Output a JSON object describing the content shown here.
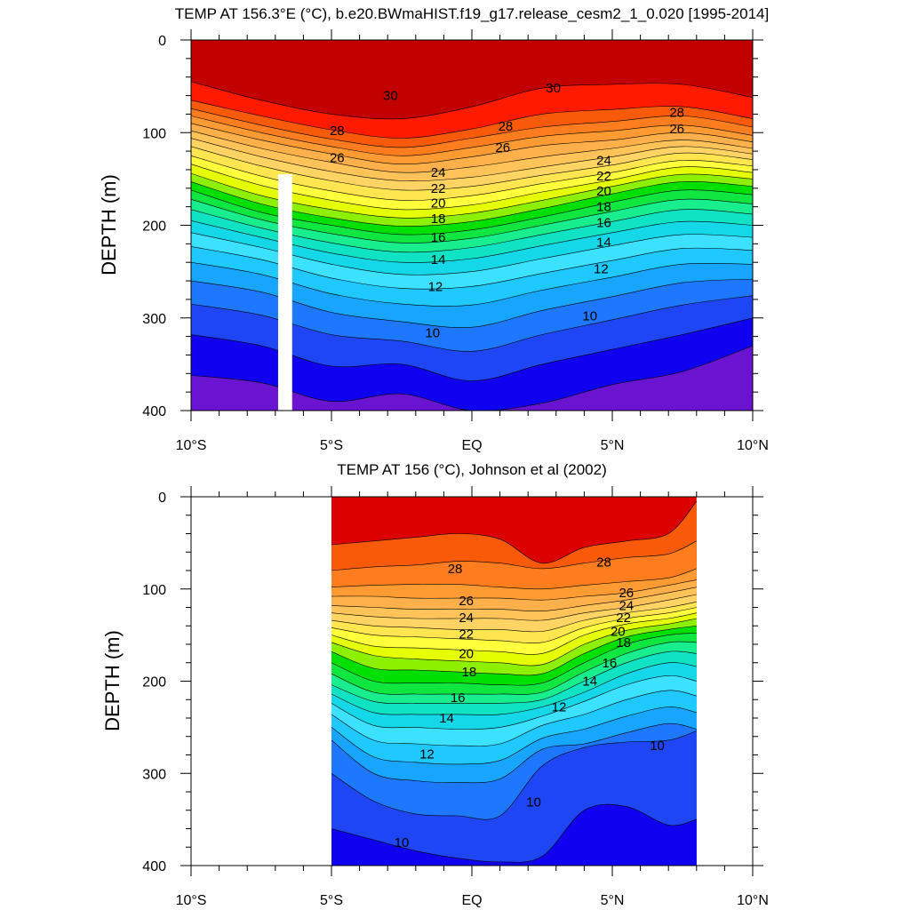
{
  "chart_data": [
    {
      "type": "contour",
      "title": "TEMP AT 156.3°E (°C), b.e20.BWmaHIST.f19_g17.release_cesm2_1_0.020 [1995-2014]",
      "xlabel": "",
      "ylabel": "DEPTH (m)",
      "xlim": [
        -10,
        10
      ],
      "ylim": [
        400,
        0
      ],
      "x_ticks": [
        -10,
        -5,
        0,
        5,
        10
      ],
      "x_tick_labels": [
        "10°S",
        "5°S",
        "EQ",
        "5°N",
        "10°N"
      ],
      "y_ticks": [
        0,
        100,
        200,
        300,
        400
      ],
      "y_tick_labels": [
        "0",
        "100",
        "200",
        "300",
        "400"
      ],
      "data_extent": [
        -10,
        10
      ],
      "missing_band": [
        -6.9,
        -6.4,
        145,
        400
      ],
      "x_nodes": [
        -10,
        -7.5,
        -5,
        -2.5,
        0,
        2.5,
        5,
        7.5,
        10
      ],
      "contours": [
        {
          "level": 30,
          "depth": [
            45,
            65,
            80,
            85,
            72,
            52,
            48,
            48,
            62
          ]
        },
        {
          "level": 29,
          "depth": [
            65,
            82,
            97,
            106,
            96,
            80,
            75,
            72,
            85
          ]
        },
        {
          "level": 28,
          "depth": [
            74,
            92,
            107,
            116,
            106,
            94,
            88,
            82,
            94
          ]
        },
        {
          "level": 27,
          "depth": [
            82,
            100,
            115,
            125,
            116,
            104,
            98,
            92,
            103
          ]
        },
        {
          "level": 26,
          "depth": [
            90,
            108,
            123,
            134,
            126,
            114,
            108,
            100,
            110
          ]
        },
        {
          "level": 25,
          "depth": [
            98,
            117,
            132,
            143,
            137,
            126,
            117,
            108,
            117
          ]
        },
        {
          "level": 24,
          "depth": [
            106,
            126,
            142,
            152,
            148,
            137,
            126,
            115,
            123
          ]
        },
        {
          "level": 23,
          "depth": [
            115,
            136,
            152,
            162,
            158,
            146,
            135,
            122,
            129
          ]
        },
        {
          "level": 22,
          "depth": [
            125,
            147,
            163,
            173,
            168,
            155,
            143,
            130,
            136
          ]
        },
        {
          "level": 21,
          "depth": [
            134,
            157,
            173,
            183,
            178,
            164,
            151,
            137,
            143
          ]
        },
        {
          "level": 20,
          "depth": [
            144,
            168,
            183,
            192,
            187,
            173,
            158,
            145,
            150
          ]
        },
        {
          "level": 19,
          "depth": [
            153,
            177,
            192,
            201,
            196,
            182,
            166,
            153,
            158
          ]
        },
        {
          "level": 18,
          "depth": [
            162,
            186,
            200,
            210,
            205,
            191,
            175,
            162,
            167
          ]
        },
        {
          "level": 17,
          "depth": [
            172,
            194,
            209,
            219,
            214,
            200,
            185,
            172,
            177
          ]
        },
        {
          "level": 16,
          "depth": [
            183,
            203,
            219,
            229,
            224,
            210,
            196,
            183,
            188
          ]
        },
        {
          "level": 15,
          "depth": [
            195,
            213,
            230,
            240,
            236,
            222,
            208,
            196,
            200
          ]
        },
        {
          "level": 14,
          "depth": [
            208,
            224,
            242,
            253,
            250,
            236,
            222,
            210,
            213
          ]
        },
        {
          "level": 13,
          "depth": [
            223,
            237,
            257,
            268,
            266,
            252,
            238,
            225,
            227
          ]
        },
        {
          "level": 12,
          "depth": [
            240,
            253,
            274,
            285,
            286,
            270,
            256,
            242,
            242
          ]
        },
        {
          "level": 11,
          "depth": [
            260,
            272,
            294,
            304,
            310,
            292,
            277,
            262,
            258
          ]
        },
        {
          "level": 10,
          "depth": [
            285,
            297,
            318,
            325,
            336,
            318,
            302,
            286,
            276
          ]
        },
        {
          "level": 9,
          "depth": [
            318,
            330,
            352,
            350,
            368,
            350,
            334,
            318,
            300
          ]
        },
        {
          "level": 8,
          "depth": [
            362,
            370,
            390,
            382,
            400,
            392,
            372,
            358,
            330
          ]
        }
      ],
      "contour_labels": [
        {
          "text": "30",
          "x": -2.9,
          "y": 60
        },
        {
          "text": "30",
          "x": 2.9,
          "y": 52
        },
        {
          "text": "28",
          "x": -4.8,
          "y": 98
        },
        {
          "text": "28",
          "x": 1.2,
          "y": 93
        },
        {
          "text": "28",
          "x": 7.3,
          "y": 78
        },
        {
          "text": "26",
          "x": -4.8,
          "y": 127
        },
        {
          "text": "26",
          "x": 1.1,
          "y": 116
        },
        {
          "text": "26",
          "x": 7.3,
          "y": 96
        },
        {
          "text": "24",
          "x": -1.2,
          "y": 143
        },
        {
          "text": "24",
          "x": 4.7,
          "y": 130
        },
        {
          "text": "22",
          "x": -1.2,
          "y": 160
        },
        {
          "text": "22",
          "x": 4.7,
          "y": 147
        },
        {
          "text": "20",
          "x": -1.2,
          "y": 176
        },
        {
          "text": "20",
          "x": 4.7,
          "y": 163
        },
        {
          "text": "18",
          "x": -1.2,
          "y": 193
        },
        {
          "text": "18",
          "x": 4.7,
          "y": 180
        },
        {
          "text": "16",
          "x": -1.2,
          "y": 213
        },
        {
          "text": "16",
          "x": 4.7,
          "y": 197
        },
        {
          "text": "14",
          "x": -1.2,
          "y": 237
        },
        {
          "text": "14",
          "x": 4.7,
          "y": 218
        },
        {
          "text": "12",
          "x": -1.3,
          "y": 266
        },
        {
          "text": "12",
          "x": 4.6,
          "y": 247
        },
        {
          "text": "10",
          "x": -1.4,
          "y": 316
        },
        {
          "text": "10",
          "x": 4.2,
          "y": 298
        }
      ]
    },
    {
      "type": "contour",
      "title": "TEMP AT 156 (°C), Johnson et al (2002)",
      "xlabel": "",
      "ylabel": "DEPTH (m)",
      "xlim": [
        -10,
        10
      ],
      "ylim": [
        400,
        0
      ],
      "x_ticks": [
        -10,
        -5,
        0,
        5,
        10
      ],
      "x_tick_labels": [
        "10°S",
        "5°S",
        "EQ",
        "5°N",
        "10°N"
      ],
      "y_ticks": [
        0,
        100,
        200,
        300,
        400
      ],
      "y_tick_labels": [
        "0",
        "100",
        "200",
        "300",
        "400"
      ],
      "data_extent": [
        -5,
        8
      ],
      "x_nodes": [
        -5,
        -3.5,
        -2,
        -0.5,
        1,
        2.5,
        4,
        5.5,
        7,
        8
      ],
      "contours": [
        {
          "level": 29,
          "depth": [
            52,
            48,
            44,
            40,
            46,
            72,
            55,
            48,
            40,
            5
          ]
        },
        {
          "level": 28,
          "depth": [
            80,
            76,
            74,
            70,
            72,
            78,
            72,
            66,
            62,
            48
          ]
        },
        {
          "level": 27,
          "depth": [
            98,
            96,
            95,
            95,
            98,
            100,
            96,
            92,
            88,
            78
          ]
        },
        {
          "level": 26,
          "depth": [
            108,
            108,
            110,
            110,
            110,
            112,
            108,
            104,
            96,
            90
          ]
        },
        {
          "level": 25,
          "depth": [
            118,
            120,
            122,
            122,
            122,
            124,
            118,
            112,
            104,
            98
          ]
        },
        {
          "level": 24,
          "depth": [
            126,
            130,
            132,
            132,
            132,
            134,
            126,
            120,
            112,
            106
          ]
        },
        {
          "level": 23,
          "depth": [
            134,
            140,
            142,
            144,
            144,
            146,
            134,
            126,
            120,
            114
          ]
        },
        {
          "level": 22,
          "depth": [
            142,
            150,
            152,
            154,
            156,
            158,
            142,
            132,
            126,
            120
          ]
        },
        {
          "level": 21,
          "depth": [
            150,
            162,
            164,
            166,
            168,
            170,
            150,
            138,
            132,
            126
          ]
        },
        {
          "level": 20,
          "depth": [
            158,
            172,
            176,
            178,
            180,
            182,
            160,
            145,
            138,
            132
          ]
        },
        {
          "level": 19,
          "depth": [
            168,
            186,
            188,
            190,
            192,
            192,
            170,
            152,
            144,
            140
          ]
        },
        {
          "level": 18,
          "depth": [
            180,
            200,
            202,
            202,
            204,
            202,
            180,
            160,
            150,
            148
          ]
        },
        {
          "level": 17,
          "depth": [
            192,
            212,
            214,
            214,
            214,
            212,
            190,
            170,
            158,
            158
          ]
        },
        {
          "level": 16,
          "depth": [
            204,
            222,
            224,
            224,
            224,
            220,
            200,
            180,
            168,
            170
          ]
        },
        {
          "level": 15,
          "depth": [
            214,
            234,
            236,
            236,
            236,
            228,
            212,
            192,
            180,
            184
          ]
        },
        {
          "level": 14,
          "depth": [
            224,
            248,
            250,
            252,
            250,
            238,
            222,
            204,
            194,
            200
          ]
        },
        {
          "level": 13,
          "depth": [
            236,
            264,
            268,
            270,
            268,
            248,
            236,
            220,
            210,
            216
          ]
        },
        {
          "level": 12,
          "depth": [
            250,
            282,
            288,
            290,
            286,
            262,
            252,
            238,
            228,
            234
          ]
        },
        {
          "level": 11,
          "depth": [
            264,
            300,
            308,
            310,
            306,
            274,
            268,
            256,
            246,
            252
          ]
        },
        {
          "level": 10,
          "depth": [
            300,
            330,
            344,
            346,
            346,
            292,
            272,
            266,
            264,
            254
          ]
        },
        {
          "level": 9,
          "depth": [
            360,
            372,
            384,
            392,
            396,
            390,
            340,
            336,
            356,
            350
          ]
        },
        {
          "level": 8,
          "depth": [
            400,
            400,
            400,
            400,
            400,
            400,
            400,
            400,
            400,
            400
          ]
        }
      ],
      "contour_labels": [
        {
          "text": "28",
          "x": -0.6,
          "y": 78
        },
        {
          "text": "28",
          "x": 4.7,
          "y": 71
        },
        {
          "text": "26",
          "x": -0.2,
          "y": 113
        },
        {
          "text": "26",
          "x": 5.5,
          "y": 104
        },
        {
          "text": "24",
          "x": -0.2,
          "y": 131
        },
        {
          "text": "24",
          "x": 5.5,
          "y": 118
        },
        {
          "text": "22",
          "x": -0.2,
          "y": 149
        },
        {
          "text": "22",
          "x": 5.4,
          "y": 131
        },
        {
          "text": "20",
          "x": -0.2,
          "y": 170
        },
        {
          "text": "20",
          "x": 5.2,
          "y": 146
        },
        {
          "text": "18",
          "x": -0.1,
          "y": 190
        },
        {
          "text": "18",
          "x": 5.4,
          "y": 158
        },
        {
          "text": "16",
          "x": -0.5,
          "y": 218
        },
        {
          "text": "16",
          "x": 4.9,
          "y": 180
        },
        {
          "text": "14",
          "x": -0.9,
          "y": 240
        },
        {
          "text": "14",
          "x": 4.2,
          "y": 200
        },
        {
          "text": "12",
          "x": -1.6,
          "y": 279
        },
        {
          "text": "12",
          "x": 3.1,
          "y": 228
        },
        {
          "text": "10",
          "x": 2.2,
          "y": 331
        },
        {
          "text": "10",
          "x": 6.6,
          "y": 270
        },
        {
          "text": "10",
          "x": -2.5,
          "y": 375
        }
      ]
    }
  ],
  "colormap": [
    {
      "min": 7.5,
      "color": "#6a14d2"
    },
    {
      "min": 8,
      "color": "#1000f0"
    },
    {
      "min": 9,
      "color": "#1f46f5"
    },
    {
      "min": 10,
      "color": "#1e78ff"
    },
    {
      "min": 11,
      "color": "#18a5ff"
    },
    {
      "min": 12,
      "color": "#1fc8ff"
    },
    {
      "min": 13,
      "color": "#3ce1ff"
    },
    {
      "min": 14,
      "color": "#14d8e8"
    },
    {
      "min": 15,
      "color": "#10e3c4"
    },
    {
      "min": 16,
      "color": "#18ee8e"
    },
    {
      "min": 17,
      "color": "#10e640"
    },
    {
      "min": 18,
      "color": "#00e000"
    },
    {
      "min": 19,
      "color": "#8cf000"
    },
    {
      "min": 20,
      "color": "#e6ff00"
    },
    {
      "min": 21,
      "color": "#ffff3c"
    },
    {
      "min": 22,
      "color": "#ffe650"
    },
    {
      "min": 23,
      "color": "#ffd464"
    },
    {
      "min": 24,
      "color": "#ffc35a"
    },
    {
      "min": 25,
      "color": "#ffb04a"
    },
    {
      "min": 26,
      "color": "#ff9b32"
    },
    {
      "min": 27,
      "color": "#ff7d1e"
    },
    {
      "min": 28,
      "color": "#f85a0a"
    },
    {
      "min": 29,
      "color": "#ff1a00"
    },
    {
      "min": 30,
      "color": "#dc0000"
    },
    {
      "min": 31,
      "color": "#c20000"
    }
  ]
}
